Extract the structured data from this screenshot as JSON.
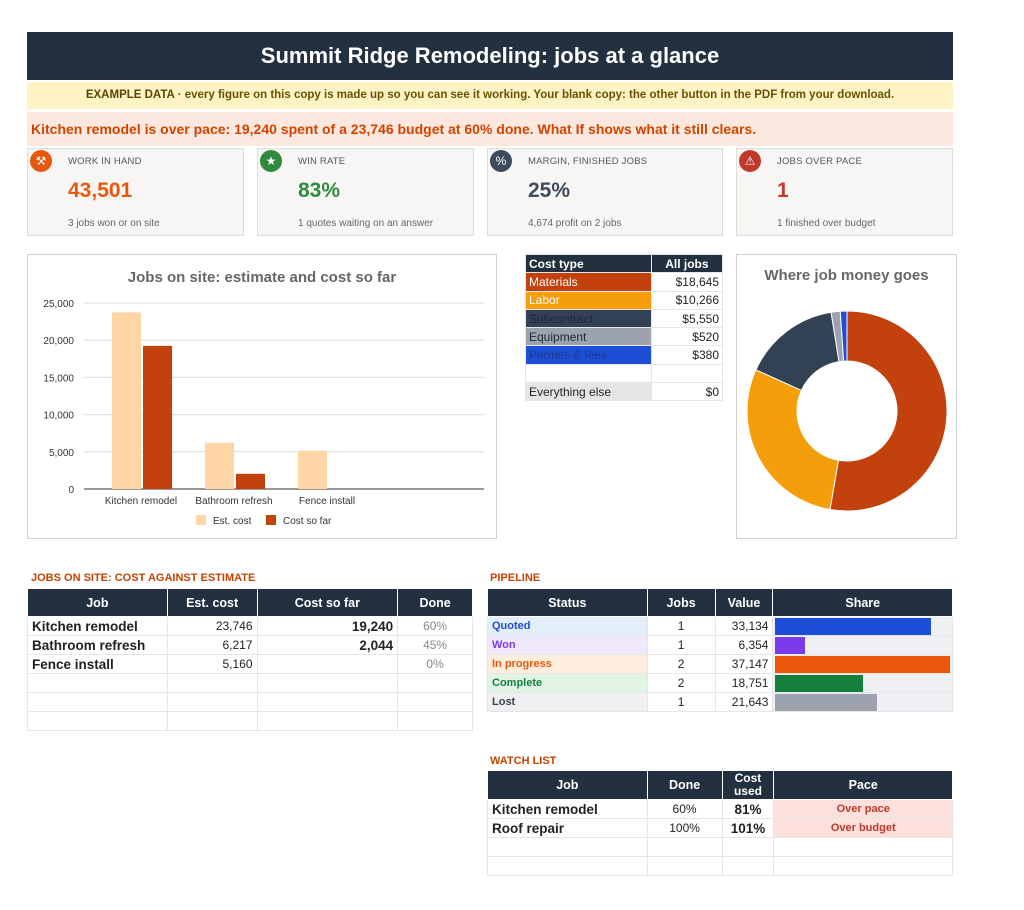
{
  "title": "Summit Ridge Remodeling: jobs at a glance",
  "banner": {
    "tag": "EXAMPLE DATA",
    "sep": "·",
    "text": "every figure on this copy is made up so you can see it working. Your blank copy: the other button in the PDF from your download."
  },
  "alert": "Kitchen remodel is over pace: 19,240 spent of a 23,746 budget at 60% done. What If shows what it still clears.",
  "kpis": [
    {
      "label": "WORK IN HAND",
      "value": "43,501",
      "sub": "3 jobs won or on site",
      "icon": "hammer-icon",
      "color": "#e8570e"
    },
    {
      "label": "WIN RATE",
      "value": "83%",
      "sub": "1 quotes waiting on an answer",
      "icon": "trophy-icon",
      "color": "#2e8b3d"
    },
    {
      "label": "MARGIN, FINISHED JOBS",
      "value": "25%",
      "sub": "4,674 profit on 2 jobs",
      "icon": "percent-icon",
      "color": "#3d4b5c"
    },
    {
      "label": "JOBS OVER PACE",
      "value": "1",
      "sub": "1 finished over budget",
      "icon": "warning-icon",
      "color": "#c0392b"
    }
  ],
  "chart_data": [
    {
      "type": "bar",
      "title": "Jobs on site: estimate and cost so far",
      "categories": [
        "Kitchen remodel",
        "Bathroom refresh",
        "Fence install"
      ],
      "series": [
        {
          "name": "Est. cost",
          "values": [
            23746,
            6217,
            5160
          ],
          "color": "#fdd5a6"
        },
        {
          "name": "Cost so far",
          "values": [
            19240,
            2044,
            0
          ],
          "color": "#c2410c"
        }
      ],
      "ylim": [
        0,
        25000
      ],
      "yticks": [
        "25,000",
        "20,000",
        "15,000",
        "10,000",
        "5,000",
        "0"
      ],
      "ytick_values": [
        25000,
        20000,
        15000,
        10000,
        5000,
        0
      ],
      "legend_position": "bottom",
      "grid": true
    },
    {
      "type": "pie",
      "title": "Where job money goes",
      "labels": [
        "Materials",
        "Labor",
        "Subcontract",
        "Equipment",
        "Permits & fees"
      ],
      "values": [
        18645,
        10266,
        5550,
        520,
        380
      ],
      "colors": [
        "#c2410c",
        "#f59e0b",
        "#334155",
        "#9ca3af",
        "#1d4ed8"
      ],
      "donut": true
    }
  ],
  "cost_table": {
    "headers": [
      "Cost type",
      "All jobs"
    ],
    "rows": [
      {
        "label": "Materials",
        "value": "$18,645",
        "bg": "#c2410c",
        "fg": "#ffffff"
      },
      {
        "label": "Labor",
        "value": "$10,266",
        "bg": "#f59e0b",
        "fg": "#ffffff"
      },
      {
        "label": "Subcontract",
        "value": "$5,550",
        "bg": "#334155",
        "fg": "#1f2937"
      },
      {
        "label": "Equipment",
        "value": "$520",
        "bg": "#9ca3af",
        "fg": "#1f2937"
      },
      {
        "label": "Permits & fees",
        "value": "$380",
        "bg": "#1d4ed8",
        "fg": "#1e3a8a"
      },
      {
        "label": "",
        "value": "",
        "bg": "#ffffff",
        "fg": "#222222"
      },
      {
        "label": "Everything else",
        "value": "$0",
        "bg": "#e5e5e5",
        "fg": "#222222"
      }
    ]
  },
  "jobs_on_site": {
    "title": "JOBS ON SITE: COST AGAINST ESTIMATE",
    "headers": [
      "Job",
      "Est. cost",
      "Cost so far",
      "Done"
    ],
    "rows": [
      {
        "job": "Kitchen remodel",
        "est": "23,746",
        "cost": "19,240",
        "done": "60%"
      },
      {
        "job": "Bathroom refresh",
        "est": "6,217",
        "cost": "2,044",
        "done": "45%"
      },
      {
        "job": "Fence install",
        "est": "5,160",
        "cost": "",
        "done": "0%"
      },
      {
        "job": "",
        "est": "",
        "cost": "",
        "done": ""
      },
      {
        "job": "",
        "est": "",
        "cost": "",
        "done": ""
      },
      {
        "job": "",
        "est": "",
        "cost": "",
        "done": ""
      }
    ]
  },
  "pipeline": {
    "title": "PIPELINE",
    "headers": [
      "Status",
      "Jobs",
      "Value",
      "Share"
    ],
    "rows": [
      {
        "status": "Quoted",
        "jobs": "1",
        "value": "33,134",
        "share": 0.89,
        "color": "#1d4ed8",
        "tint": "#e3eefb",
        "fg": "#1d4ed8"
      },
      {
        "status": "Won",
        "jobs": "1",
        "value": "6,354",
        "share": 0.17,
        "color": "#7c3aed",
        "tint": "#efe9fb",
        "fg": "#7c3aed"
      },
      {
        "status": "In progress",
        "jobs": "2",
        "value": "37,147",
        "share": 1.0,
        "color": "#ea580c",
        "tint": "#fdeede",
        "fg": "#ea580c"
      },
      {
        "status": "Complete",
        "jobs": "2",
        "value": "18,751",
        "share": 0.5,
        "color": "#15803d",
        "tint": "#e2f4e6",
        "fg": "#15803d"
      },
      {
        "status": "Lost",
        "jobs": "1",
        "value": "21,643",
        "share": 0.58,
        "color": "#9ca3af",
        "tint": "#f0f0f2",
        "fg": "#374151"
      }
    ]
  },
  "watch_list": {
    "title": "WATCH LIST",
    "headers": [
      "Job",
      "Done",
      "Cost used",
      "Pace"
    ],
    "rows": [
      {
        "job": "Kitchen remodel",
        "done": "60%",
        "used": "81%",
        "pace": "Over pace"
      },
      {
        "job": "Roof repair",
        "done": "100%",
        "used": "101%",
        "pace": "Over budget"
      },
      {
        "job": "",
        "done": "",
        "used": "",
        "pace": ""
      },
      {
        "job": "",
        "done": "",
        "used": "",
        "pace": ""
      }
    ]
  }
}
